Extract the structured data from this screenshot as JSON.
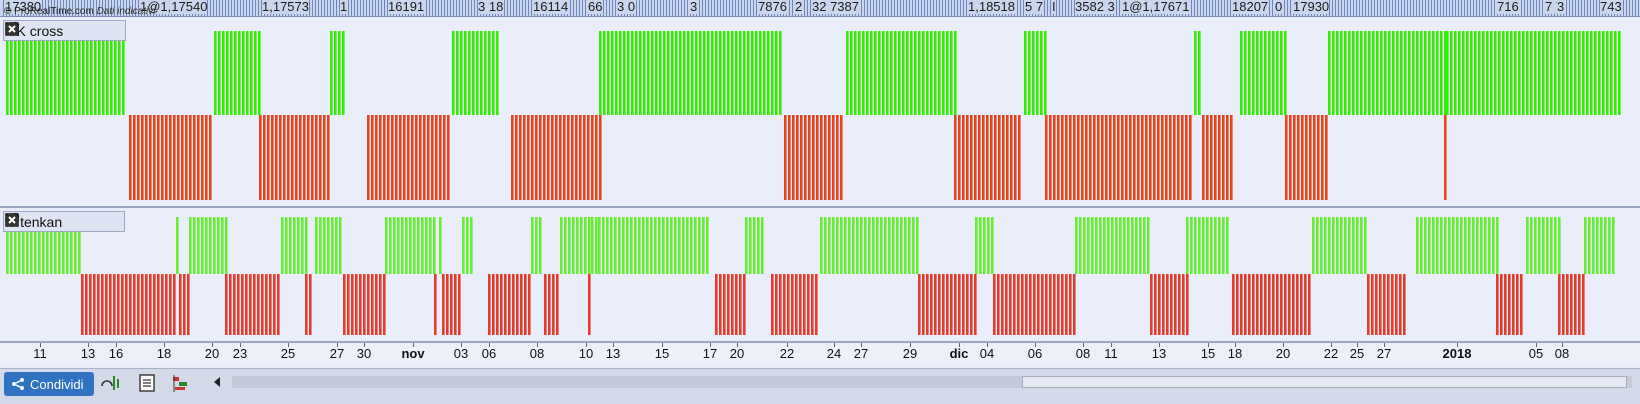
{
  "header": {
    "copyright": "© ProRealTime.com",
    "data_label": "Dati indicativi",
    "ticker_labels": [
      "17380",
      "1@1,17540",
      "1,17573",
      "1",
      "16191",
      "3 18",
      "16114",
      "66",
      "3 0",
      "3",
      "7876",
      "2",
      "32 7387",
      "1,18518",
      "5 7",
      "I",
      "3582 3",
      "1@1,17671",
      "18207",
      "0",
      "17930",
      "716",
      "7 7",
      "3",
      "743"
    ]
  },
  "panels": [
    {
      "title": "TK cross",
      "colors": {
        "bull": "#33ee00",
        "bear": "#e8431a"
      }
    },
    {
      "title": "> tenkan",
      "colors": {
        "bull": "#66ee33",
        "bear": "#e63b2b"
      }
    }
  ],
  "xaxis": {
    "labels": [
      {
        "text": "11"
      },
      {
        "text": "13"
      },
      {
        "text": "16"
      },
      {
        "text": "18"
      },
      {
        "text": "20"
      },
      {
        "text": "23"
      },
      {
        "text": "25"
      },
      {
        "text": "27"
      },
      {
        "text": "30"
      },
      {
        "text": "nov",
        "bold": true
      },
      {
        "text": "03"
      },
      {
        "text": "06"
      },
      {
        "text": "08"
      },
      {
        "text": "10"
      },
      {
        "text": "13"
      },
      {
        "text": "15"
      },
      {
        "text": "17"
      },
      {
        "text": "20"
      },
      {
        "text": "22"
      },
      {
        "text": "24"
      },
      {
        "text": "27"
      },
      {
        "text": "29"
      },
      {
        "text": "dic",
        "bold": true
      },
      {
        "text": "04"
      },
      {
        "text": "06"
      },
      {
        "text": "08"
      },
      {
        "text": "11"
      },
      {
        "text": "13"
      },
      {
        "text": "15"
      },
      {
        "text": "18"
      },
      {
        "text": "20"
      },
      {
        "text": "22"
      },
      {
        "text": "25"
      },
      {
        "text": "27"
      },
      {
        "text": "2018",
        "bold": true
      },
      {
        "text": "05"
      },
      {
        "text": "08"
      }
    ]
  },
  "toolbar": {
    "share_label": "Condividi"
  },
  "chart_data": [
    {
      "type": "bar",
      "title": "TK cross",
      "xlabel": "",
      "ylabel": "",
      "series": [
        {
          "values": [
            1,
            1
          ]
        },
        {
          "values": [
            -1,
            -1
          ]
        }
      ],
      "ylim": [
        -1,
        1
      ],
      "segments": [
        {
          "from": 0.0,
          "to": 0.073,
          "value": 1
        },
        {
          "from": 0.075,
          "to": 0.126,
          "value": -1
        },
        {
          "from": 0.127,
          "to": 0.155,
          "value": 1
        },
        {
          "from": 0.155,
          "to": 0.198,
          "value": -1
        },
        {
          "from": 0.198,
          "to": 0.206,
          "value": 1
        },
        {
          "from": 0.221,
          "to": 0.272,
          "value": -1
        },
        {
          "from": 0.273,
          "to": 0.301,
          "value": 1
        },
        {
          "from": 0.309,
          "to": 0.363,
          "value": -1
        },
        {
          "from": 0.363,
          "to": 0.475,
          "value": 1
        },
        {
          "from": 0.476,
          "to": 0.511,
          "value": -1
        },
        {
          "from": 0.514,
          "to": 0.58,
          "value": 1
        },
        {
          "from": 0.58,
          "to": 0.621,
          "value": -1
        },
        {
          "from": 0.623,
          "to": 0.636,
          "value": 1
        },
        {
          "from": 0.636,
          "to": 0.726,
          "value": -1
        },
        {
          "from": 0.727,
          "to": 0.73,
          "value": 1
        },
        {
          "from": 0.732,
          "to": 0.75,
          "value": -1
        },
        {
          "from": 0.755,
          "to": 0.783,
          "value": 1
        },
        {
          "from": 0.783,
          "to": 0.808,
          "value": -1
        },
        {
          "from": 0.809,
          "to": 0.88,
          "value": 1
        },
        {
          "from": 0.88,
          "to": 0.881,
          "value": -1
        },
        {
          "from": 0.881,
          "to": 0.988,
          "value": 1
        }
      ]
    },
    {
      "type": "bar",
      "title": "> tenkan",
      "xlabel": "",
      "ylabel": "",
      "series": [
        {
          "values": [
            1,
            1
          ]
        },
        {
          "values": [
            -1,
            -1
          ]
        }
      ],
      "ylim": [
        -1,
        1
      ],
      "segments": [
        {
          "from": 0.0,
          "to": 0.045,
          "value": 1
        },
        {
          "from": 0.046,
          "to": 0.103,
          "value": -1
        },
        {
          "from": 0.104,
          "to": 0.106,
          "value": 1
        },
        {
          "from": 0.106,
          "to": 0.111,
          "value": -1
        },
        {
          "from": 0.112,
          "to": 0.134,
          "value": 1
        },
        {
          "from": 0.134,
          "to": 0.167,
          "value": -1
        },
        {
          "from": 0.168,
          "to": 0.183,
          "value": 1
        },
        {
          "from": 0.183,
          "to": 0.187,
          "value": -1
        },
        {
          "from": 0.189,
          "to": 0.205,
          "value": 1
        },
        {
          "from": 0.206,
          "to": 0.231,
          "value": -1
        },
        {
          "from": 0.232,
          "to": 0.262,
          "value": 1
        },
        {
          "from": 0.262,
          "to": 0.264,
          "value": -1
        },
        {
          "from": 0.265,
          "to": 0.267,
          "value": 1
        },
        {
          "from": 0.267,
          "to": 0.277,
          "value": -1
        },
        {
          "from": 0.279,
          "to": 0.284,
          "value": 1
        },
        {
          "from": 0.295,
          "to": 0.321,
          "value": -1
        },
        {
          "from": 0.321,
          "to": 0.328,
          "value": 1
        },
        {
          "from": 0.329,
          "to": 0.338,
          "value": -1
        },
        {
          "from": 0.339,
          "to": 0.356,
          "value": 1
        },
        {
          "from": 0.356,
          "to": 0.358,
          "value": -1
        },
        {
          "from": 0.358,
          "to": 0.361,
          "value": 1
        },
        {
          "from": 0.362,
          "to": 0.43,
          "value": 1
        },
        {
          "from": 0.434,
          "to": 0.452,
          "value": -1
        },
        {
          "from": 0.452,
          "to": 0.462,
          "value": 1
        },
        {
          "from": 0.468,
          "to": 0.497,
          "value": -1
        },
        {
          "from": 0.498,
          "to": 0.558,
          "value": 1
        },
        {
          "from": 0.558,
          "to": 0.593,
          "value": -1
        },
        {
          "from": 0.593,
          "to": 0.604,
          "value": 1
        },
        {
          "from": 0.604,
          "to": 0.654,
          "value": -1
        },
        {
          "from": 0.654,
          "to": 0.7,
          "value": 1
        },
        {
          "from": 0.7,
          "to": 0.722,
          "value": -1
        },
        {
          "from": 0.722,
          "to": 0.748,
          "value": 1
        },
        {
          "from": 0.75,
          "to": 0.797,
          "value": -1
        },
        {
          "from": 0.799,
          "to": 0.833,
          "value": 1
        },
        {
          "from": 0.833,
          "to": 0.856,
          "value": -1
        },
        {
          "from": 0.863,
          "to": 0.912,
          "value": 1
        },
        {
          "from": 0.912,
          "to": 0.928,
          "value": -1
        },
        {
          "from": 0.93,
          "to": 0.95,
          "value": 1
        },
        {
          "from": 0.95,
          "to": 0.966,
          "value": -1
        },
        {
          "from": 0.966,
          "to": 0.984,
          "value": 1
        }
      ]
    }
  ]
}
